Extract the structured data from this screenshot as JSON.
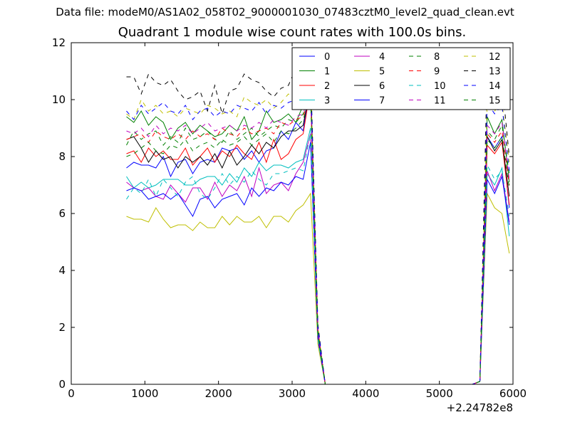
{
  "header": {
    "supertitle": "Data file: modeM0/AS1A02_058T02_9000001030_07483cztM0_level2_quad_clean.evt"
  },
  "chart_data": {
    "type": "line",
    "title": "Quadrant 1 module wise count rates with 100.0s bins.",
    "xlabel": "",
    "ylabel": "",
    "x_offset_label": "+2.24782e8",
    "xlim": [
      0,
      6000
    ],
    "ylim": [
      0,
      12
    ],
    "xticks": [
      "0",
      "1000",
      "2000",
      "3000",
      "4000",
      "5000",
      "6000"
    ],
    "yticks": [
      "0",
      "2",
      "4",
      "6",
      "8",
      "10",
      "12"
    ],
    "grid": false,
    "legend_placement": "top-right",
    "x": [
      750,
      850,
      950,
      1050,
      1150,
      1250,
      1350,
      1450,
      1550,
      1650,
      1750,
      1850,
      1950,
      2050,
      2150,
      2250,
      2350,
      2450,
      2550,
      2650,
      2750,
      2850,
      2950,
      3050,
      3150,
      3250,
      3350,
      3450,
      3550,
      3650,
      3750,
      3850,
      3950,
      4050,
      4150,
      4250,
      4350,
      4450,
      4550,
      4650,
      4750,
      4850,
      4950,
      5050,
      5150,
      5250,
      5350,
      5450,
      5550,
      5650,
      5750,
      5850,
      5950
    ],
    "series": [
      {
        "name": "0",
        "color": "#0000ff",
        "dash": "solid",
        "values": [
          7.6,
          7.8,
          7.7,
          7.7,
          7.6,
          8.0,
          7.3,
          7.8,
          7.9,
          7.4,
          7.8,
          7.9,
          7.8,
          8.3,
          8.2,
          8.3,
          7.9,
          8.2,
          7.8,
          8.2,
          8.3,
          8.9,
          8.6,
          9.2,
          8.9,
          10.6,
          1.8,
          0,
          0,
          0,
          0,
          0,
          0,
          0,
          0,
          0,
          0,
          0,
          0,
          0,
          0,
          0,
          0,
          0,
          0,
          0,
          0,
          0,
          0.1,
          8.7,
          8.3,
          8.7,
          6.2
        ]
      },
      {
        "name": "1",
        "color": "#008000",
        "dash": "solid",
        "values": [
          9.4,
          9.2,
          9.6,
          9.1,
          9.4,
          9.2,
          8.6,
          9.0,
          9.2,
          8.8,
          9.1,
          8.9,
          8.7,
          8.8,
          9.1,
          8.9,
          9.4,
          8.6,
          8.9,
          9.6,
          9.2,
          9.3,
          9.5,
          9.2,
          9.8,
          10.7,
          1.9,
          0,
          0,
          0,
          0,
          0,
          0,
          0,
          0,
          0,
          0,
          0,
          0,
          0,
          0,
          0,
          0,
          0,
          0,
          0,
          0,
          0,
          0.1,
          9.4,
          8.8,
          9.3,
          7.1
        ]
      },
      {
        "name": "2",
        "color": "#ff0000",
        "dash": "solid",
        "values": [
          8.1,
          8.2,
          7.8,
          8.3,
          8.0,
          8.2,
          7.9,
          7.9,
          8.3,
          7.7,
          8.0,
          8.3,
          7.8,
          8.2,
          8.0,
          8.4,
          8.1,
          7.9,
          8.5,
          7.8,
          8.6,
          7.9,
          8.1,
          8.6,
          8.8,
          10.4,
          1.8,
          0,
          0,
          0,
          0,
          0,
          0,
          0,
          0,
          0,
          0,
          0,
          0,
          0,
          0,
          0,
          0,
          0,
          0,
          0,
          0,
          0,
          0.1,
          8.4,
          8.1,
          8.5,
          6.3
        ]
      },
      {
        "name": "3",
        "color": "#00bfbf",
        "dash": "solid",
        "values": [
          7.3,
          6.9,
          7.1,
          6.9,
          7.0,
          7.2,
          7.2,
          7.2,
          7.0,
          7.0,
          7.2,
          7.3,
          7.3,
          7.0,
          7.4,
          7.1,
          7.6,
          7.3,
          7.8,
          7.5,
          7.7,
          7.7,
          7.6,
          7.8,
          7.9,
          9.0,
          1.6,
          0,
          0,
          0,
          0,
          0,
          0,
          0,
          0,
          0,
          0,
          0,
          0,
          0,
          0,
          0,
          0,
          0,
          0,
          0,
          0,
          0,
          0.1,
          7.4,
          7.0,
          7.6,
          5.2
        ]
      },
      {
        "name": "4",
        "color": "#bf00bf",
        "dash": "solid",
        "values": [
          7.1,
          6.9,
          6.8,
          6.9,
          6.6,
          6.5,
          7.0,
          6.7,
          6.4,
          6.9,
          6.9,
          6.5,
          7.1,
          6.6,
          7.0,
          6.8,
          7.3,
          6.6,
          7.6,
          6.7,
          7.0,
          7.1,
          6.8,
          7.4,
          7.8,
          8.8,
          1.6,
          0,
          0,
          0,
          0,
          0,
          0,
          0,
          0,
          0,
          0,
          0,
          0,
          0,
          0,
          0,
          0,
          0,
          0,
          0,
          0,
          0,
          0.1,
          7.5,
          6.8,
          7.4,
          5.7
        ]
      },
      {
        "name": "5",
        "color": "#bfbf00",
        "dash": "solid",
        "values": [
          5.9,
          5.8,
          5.8,
          5.7,
          6.2,
          5.8,
          5.5,
          5.6,
          5.6,
          5.4,
          5.7,
          5.5,
          5.5,
          5.9,
          5.6,
          5.9,
          5.7,
          5.7,
          5.9,
          5.5,
          5.9,
          5.9,
          5.7,
          6.1,
          6.3,
          6.7,
          1.4,
          0,
          0,
          0,
          0,
          0,
          0,
          0,
          0,
          0,
          0,
          0,
          0,
          0,
          0,
          0,
          0,
          0,
          0,
          0,
          0,
          0,
          0.1,
          6.7,
          6.2,
          6.0,
          4.6
        ]
      },
      {
        "name": "6",
        "color": "#000000",
        "dash": "solid",
        "values": [
          8.6,
          8.7,
          8.3,
          7.8,
          8.2,
          7.9,
          8.0,
          7.6,
          8.0,
          7.8,
          8.0,
          7.7,
          8.1,
          7.6,
          8.2,
          7.7,
          8.0,
          8.4,
          8.1,
          8.5,
          8.3,
          8.7,
          8.9,
          8.9,
          9.1,
          10.5,
          1.9,
          0,
          0,
          0,
          0,
          0,
          0,
          0,
          0,
          0,
          0,
          0,
          0,
          0,
          0,
          0,
          0,
          0,
          0,
          0,
          0,
          0,
          0.1,
          8.7,
          8.2,
          8.6,
          6.6
        ]
      },
      {
        "name": "7",
        "color": "#0000ff",
        "dash": "solid",
        "values": [
          6.8,
          6.9,
          6.8,
          6.5,
          6.6,
          6.7,
          6.5,
          6.7,
          6.3,
          5.9,
          6.5,
          6.6,
          6.2,
          6.5,
          6.6,
          6.7,
          6.3,
          6.9,
          6.6,
          6.9,
          6.8,
          7.1,
          7.0,
          7.3,
          7.2,
          8.5,
          1.6,
          0,
          0,
          0,
          0,
          0,
          0,
          0,
          0,
          0,
          0,
          0,
          0,
          0,
          0,
          0,
          0,
          0,
          0,
          0,
          0,
          0,
          0.1,
          7.2,
          6.7,
          7.3,
          5.6
        ]
      },
      {
        "name": "8",
        "color": "#008000",
        "dash": "dashed",
        "values": [
          8.4,
          8.9,
          8.6,
          8.8,
          8.9,
          8.4,
          8.7,
          8.5,
          9.0,
          8.6,
          8.7,
          8.9,
          8.6,
          8.5,
          8.9,
          8.6,
          8.8,
          9.0,
          8.7,
          8.9,
          9.1,
          9.0,
          9.3,
          9.2,
          9.5,
          10.4,
          1.9,
          0,
          0,
          0,
          0,
          0,
          0,
          0,
          0,
          0,
          0,
          0,
          0,
          0,
          0,
          0,
          0,
          0,
          0,
          0,
          0,
          0,
          0.1,
          8.9,
          8.6,
          9.1,
          7.4
        ]
      },
      {
        "name": "9",
        "color": "#ff0000",
        "dash": "dashed",
        "values": [
          8.6,
          8.7,
          8.8,
          8.5,
          8.9,
          8.7,
          8.6,
          8.8,
          8.6,
          8.9,
          8.7,
          8.8,
          8.6,
          9.0,
          8.8,
          8.7,
          9.0,
          8.8,
          8.9,
          9.0,
          8.8,
          9.2,
          9.1,
          9.3,
          9.4,
          10.2,
          1.9,
          0,
          0,
          0,
          0,
          0,
          0,
          0,
          0,
          0,
          0,
          0,
          0,
          0,
          0,
          0,
          0,
          0,
          0,
          0,
          0,
          0,
          0.1,
          8.8,
          8.5,
          8.9,
          7.0
        ]
      },
      {
        "name": "10",
        "color": "#00bfbf",
        "dash": "dashed",
        "values": [
          6.5,
          6.9,
          6.7,
          7.2,
          6.6,
          7.2,
          6.9,
          6.6,
          7.1,
          7.3,
          6.7,
          6.5,
          6.9,
          7.4,
          7.0,
          7.3,
          7.1,
          7.5,
          7.2,
          7.0,
          7.4,
          7.4,
          7.5,
          7.6,
          7.5,
          8.8,
          1.6,
          0,
          0,
          0,
          0,
          0,
          0,
          0,
          0,
          0,
          0,
          0,
          0,
          0,
          0,
          0,
          0,
          0,
          0,
          0,
          0,
          0,
          0.1,
          7.7,
          7.2,
          7.5,
          5.9
        ]
      },
      {
        "name": "11",
        "color": "#bf00bf",
        "dash": "dashed",
        "values": [
          8.9,
          8.8,
          9.0,
          8.7,
          9.1,
          8.8,
          9.0,
          8.9,
          9.1,
          8.8,
          9.0,
          9.2,
          8.9,
          9.0,
          9.1,
          8.9,
          9.1,
          9.0,
          9.2,
          9.0,
          9.3,
          9.2,
          9.1,
          9.4,
          9.5,
          10.3,
          1.9,
          0,
          0,
          0,
          0,
          0,
          0,
          0,
          0,
          0,
          0,
          0,
          0,
          0,
          0,
          0,
          0,
          0,
          0,
          0,
          0,
          0,
          0.1,
          9.1,
          8.8,
          9.2,
          7.2
        ]
      },
      {
        "name": "12",
        "color": "#bfbf00",
        "dash": "dashed",
        "values": [
          9.5,
          9.3,
          10.0,
          9.6,
          9.8,
          9.5,
          9.6,
          9.4,
          9.7,
          9.6,
          9.5,
          9.8,
          9.7,
          9.5,
          9.6,
          9.4,
          10.1,
          9.9,
          9.8,
          10.0,
          9.7,
          9.9,
          10.2,
          10.0,
          10.1,
          11.0,
          2.0,
          0,
          0,
          0,
          0,
          0,
          0,
          0,
          0,
          0,
          0,
          0,
          0,
          0,
          0,
          0,
          0,
          0,
          0,
          0,
          0,
          0,
          0.1,
          10.0,
          9.6,
          9.9,
          7.8
        ]
      },
      {
        "name": "13",
        "color": "#000000",
        "dash": "dashed",
        "values": [
          10.8,
          10.8,
          10.2,
          10.9,
          10.6,
          10.5,
          10.7,
          10.3,
          10.0,
          10.1,
          10.3,
          9.6,
          10.5,
          9.5,
          10.3,
          10.4,
          10.9,
          10.7,
          10.6,
          10.3,
          10.1,
          10.4,
          10.5,
          11.1,
          10.9,
          11.2,
          2.1,
          0,
          0,
          0,
          0,
          0,
          0,
          0,
          0,
          0,
          0,
          0,
          0,
          0,
          0,
          0,
          0,
          0,
          0,
          0,
          0,
          0,
          0.1,
          11.2,
          10.2,
          10.6,
          8.0
        ]
      },
      {
        "name": "14",
        "color": "#0000ff",
        "dash": "dashed",
        "values": [
          9.6,
          9.3,
          9.8,
          9.5,
          9.7,
          9.9,
          9.6,
          9.5,
          9.8,
          9.3,
          9.6,
          9.7,
          9.4,
          9.6,
          9.5,
          9.8,
          9.7,
          9.6,
          9.9,
          9.5,
          9.8,
          9.7,
          9.9,
          10.0,
          10.2,
          10.9,
          2.0,
          0,
          0,
          0,
          0,
          0,
          0,
          0,
          0,
          0,
          0,
          0,
          0,
          0,
          0,
          0,
          0,
          0,
          0,
          0,
          0,
          0,
          0.1,
          9.9,
          9.5,
          9.8,
          7.5
        ]
      },
      {
        "name": "15",
        "color": "#008000",
        "dash": "dashed",
        "values": [
          8.0,
          8.1,
          8.3,
          8.5,
          8.2,
          8.1,
          8.4,
          8.3,
          8.6,
          8.2,
          8.4,
          8.5,
          8.3,
          8.6,
          8.4,
          8.5,
          8.7,
          8.4,
          8.6,
          8.8,
          8.5,
          8.9,
          8.8,
          9.0,
          9.3,
          10.1,
          1.8,
          0,
          0,
          0,
          0,
          0,
          0,
          0,
          0,
          0,
          0,
          0,
          0,
          0,
          0,
          0,
          0,
          0,
          0,
          0,
          0,
          0,
          0.1,
          8.6,
          8.3,
          8.7,
          6.9
        ]
      }
    ]
  }
}
